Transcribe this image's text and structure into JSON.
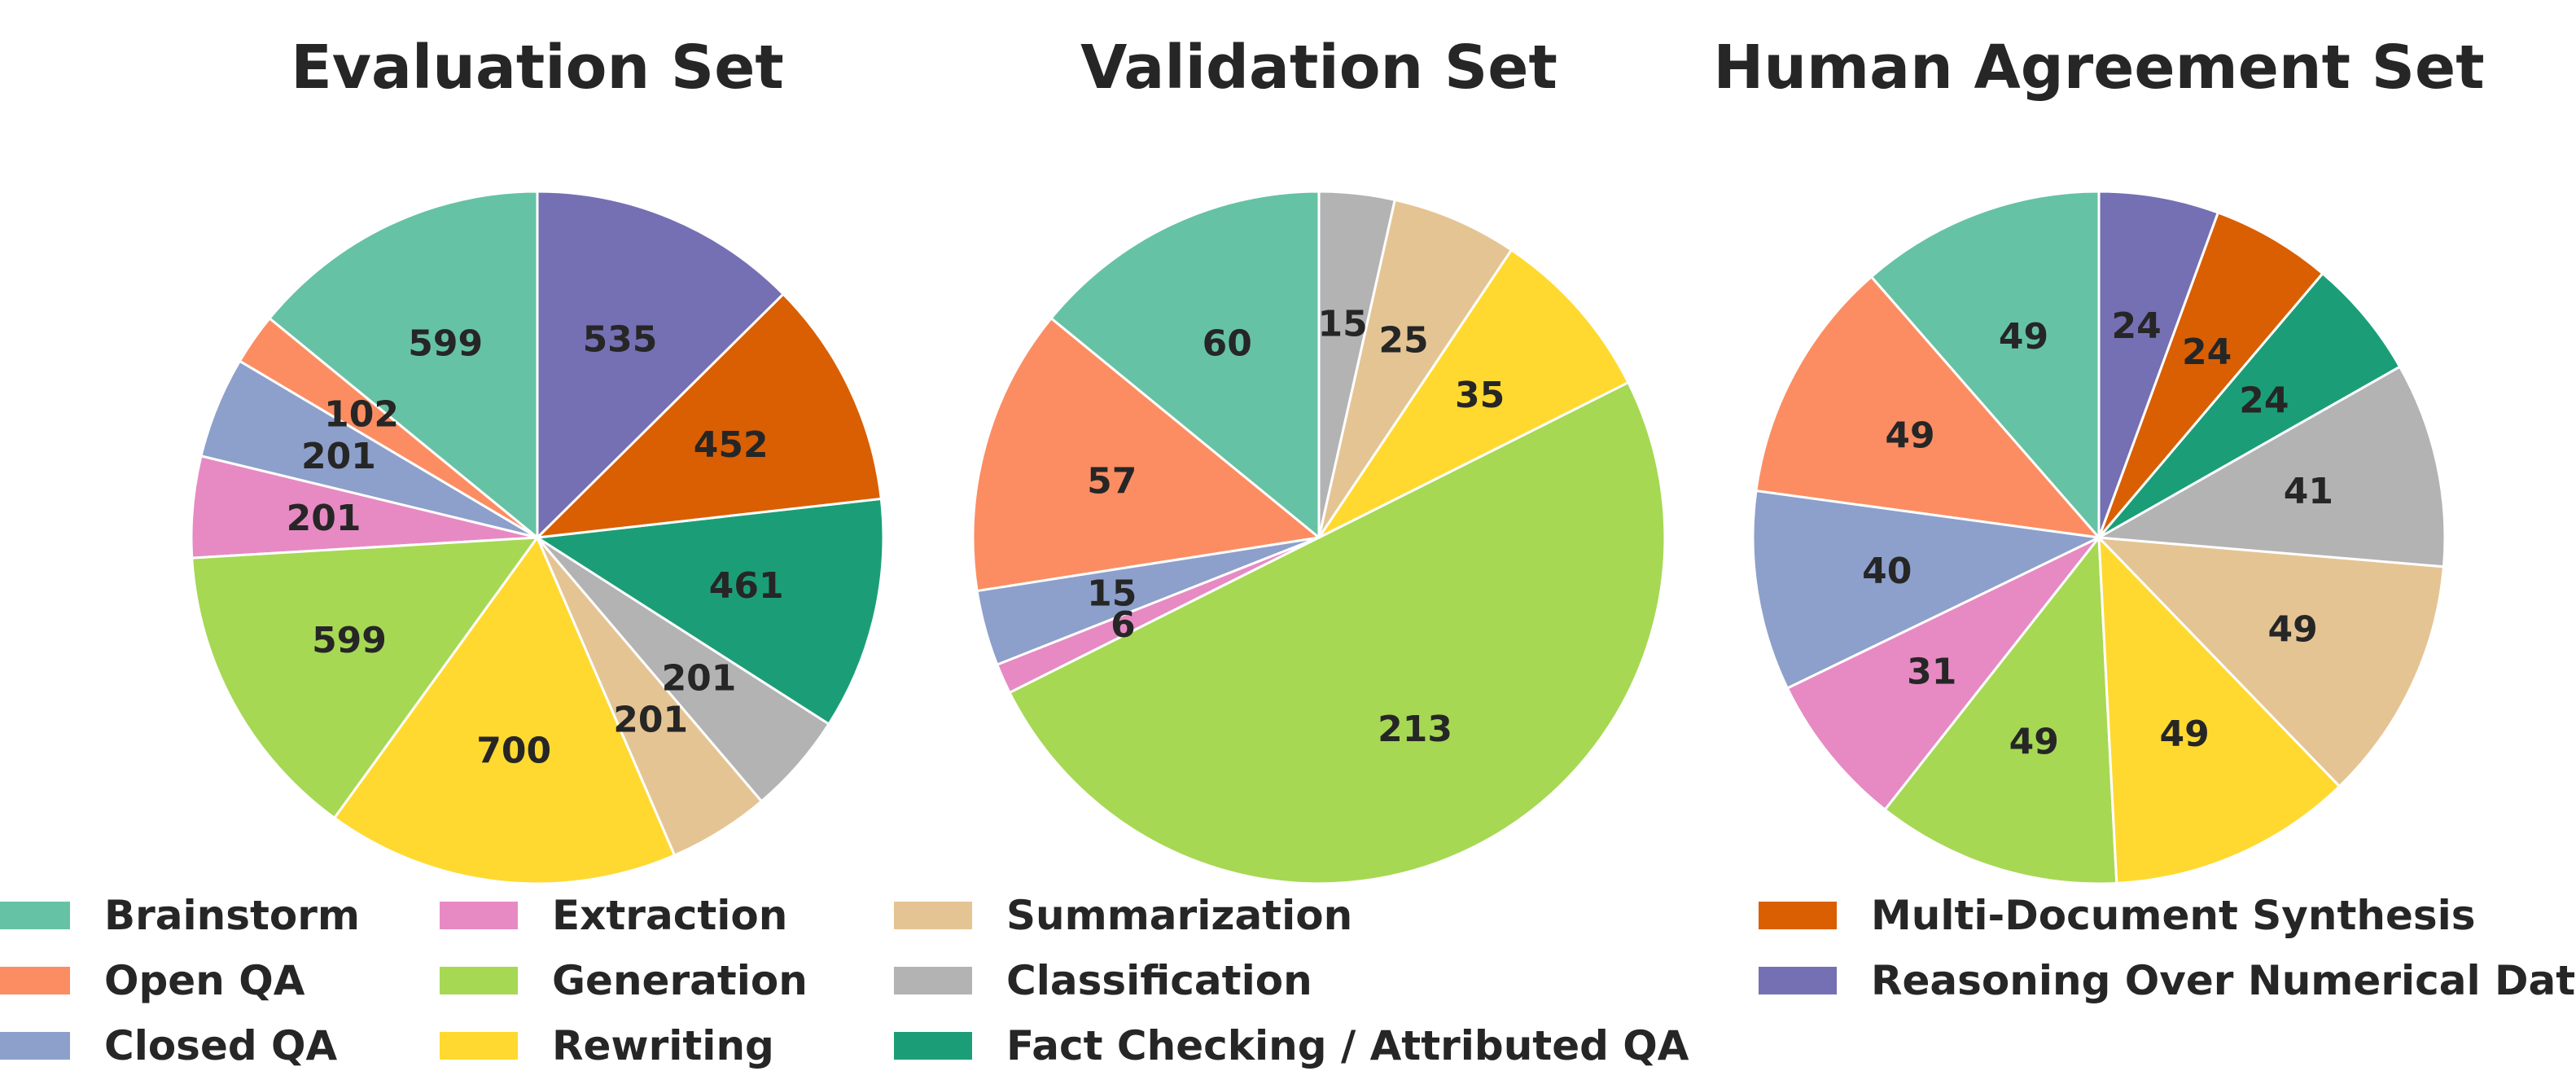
{
  "chart_data": {
    "type": "pie",
    "categories": [
      {
        "key": "brainstorm",
        "name": "Brainstorm",
        "color": "#66c2a5"
      },
      {
        "key": "open_qa",
        "name": "Open QA",
        "color": "#fc8d62"
      },
      {
        "key": "closed_qa",
        "name": "Closed QA",
        "color": "#8da0cb"
      },
      {
        "key": "extraction",
        "name": "Extraction",
        "color": "#e78ac3"
      },
      {
        "key": "generation",
        "name": "Generation",
        "color": "#a6d854"
      },
      {
        "key": "rewriting",
        "name": "Rewriting",
        "color": "#ffd92f"
      },
      {
        "key": "summarization",
        "name": "Summarization",
        "color": "#e5c494"
      },
      {
        "key": "classification",
        "name": "Classification",
        "color": "#b3b3b3"
      },
      {
        "key": "fact_checking",
        "name": "Fact Checking / Attributed QA",
        "color": "#1b9e77"
      },
      {
        "key": "multi_doc",
        "name": "Multi-Document Synthesis",
        "color": "#d95f02"
      },
      {
        "key": "reasoning_num",
        "name": "Reasoning Over Numerical Data",
        "color": "#7570b3"
      }
    ],
    "pies": [
      {
        "title": "Evaluation Set",
        "slices": [
          {
            "category": "brainstorm",
            "value": 599
          },
          {
            "category": "open_qa",
            "value": 102
          },
          {
            "category": "closed_qa",
            "value": 201
          },
          {
            "category": "extraction",
            "value": 201
          },
          {
            "category": "generation",
            "value": 599
          },
          {
            "category": "rewriting",
            "value": 700
          },
          {
            "category": "summarization",
            "value": 201
          },
          {
            "category": "classification",
            "value": 201
          },
          {
            "category": "fact_checking",
            "value": 461
          },
          {
            "category": "multi_doc",
            "value": 452
          },
          {
            "category": "reasoning_num",
            "value": 535
          }
        ]
      },
      {
        "title": "Validation Set",
        "slices": [
          {
            "category": "brainstorm",
            "value": 60
          },
          {
            "category": "open_qa",
            "value": 57
          },
          {
            "category": "closed_qa",
            "value": 15
          },
          {
            "category": "extraction",
            "value": 6
          },
          {
            "category": "generation",
            "value": 213
          },
          {
            "category": "rewriting",
            "value": 35
          },
          {
            "category": "summarization",
            "value": 25
          },
          {
            "category": "classification",
            "value": 15
          }
        ]
      },
      {
        "title": "Human Agreement Set",
        "slices": [
          {
            "category": "brainstorm",
            "value": 49
          },
          {
            "category": "open_qa",
            "value": 49
          },
          {
            "category": "closed_qa",
            "value": 40
          },
          {
            "category": "extraction",
            "value": 31
          },
          {
            "category": "generation",
            "value": 49
          },
          {
            "category": "rewriting",
            "value": 49
          },
          {
            "category": "summarization",
            "value": 49
          },
          {
            "category": "classification",
            "value": 41
          },
          {
            "category": "fact_checking",
            "value": 24
          },
          {
            "category": "multi_doc",
            "value": 24
          },
          {
            "category": "reasoning_num",
            "value": 24
          }
        ]
      }
    ],
    "start_angle_deg": 90,
    "direction": "counterclockwise",
    "legend": {
      "placement": "bottom",
      "columns": [
        [
          "brainstorm",
          "open_qa",
          "closed_qa"
        ],
        [
          "extraction",
          "generation",
          "rewriting"
        ],
        [
          "summarization",
          "classification",
          "fact_checking"
        ],
        [
          "multi_doc",
          "reasoning_num"
        ]
      ]
    }
  }
}
